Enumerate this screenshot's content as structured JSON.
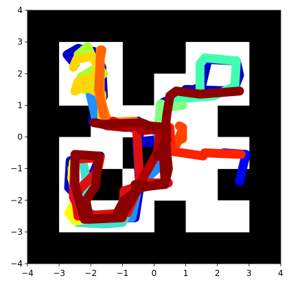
{
  "chart_data": {
    "type": "line",
    "title": "",
    "xlabel": "",
    "ylabel": "",
    "xlim": [
      -4,
      4
    ],
    "ylim": [
      -4,
      4
    ],
    "grid": false,
    "legend": "none",
    "x_ticks": [
      -4,
      -3,
      -2,
      -1,
      0,
      1,
      2,
      3,
      4
    ],
    "y_ticks": [
      -4,
      -3,
      -2,
      -1,
      0,
      1,
      2,
      3,
      4
    ],
    "x_tick_labels": [
      "−4",
      "−3",
      "−2",
      "−1",
      "0",
      "1",
      "2",
      "3",
      "4"
    ],
    "y_tick_labels": [
      "−4",
      "−3",
      "−2",
      "−1",
      "0",
      "1",
      "2",
      "3",
      "4"
    ],
    "maze": {
      "wall_color": "#000000",
      "floor_color": "#ffffff",
      "floor_cells": [
        [
          -3,
          2
        ],
        [
          -2,
          2
        ],
        [
          1,
          2
        ],
        [
          2,
          2
        ],
        [
          -3,
          1
        ],
        [
          -2,
          1
        ],
        [
          0,
          1
        ],
        [
          1,
          1
        ],
        [
          2,
          1
        ],
        [
          -2,
          0
        ],
        [
          -1,
          0
        ],
        [
          0,
          0
        ],
        [
          1,
          0
        ],
        [
          -3,
          -1
        ],
        [
          -2,
          -1
        ],
        [
          0,
          -1
        ],
        [
          1,
          -1
        ],
        [
          2,
          -1
        ],
        [
          -3,
          -2
        ],
        [
          -1,
          -2
        ],
        [
          0,
          -2
        ],
        [
          1,
          -2
        ],
        [
          -3,
          -3
        ],
        [
          -2,
          -3
        ],
        [
          -1,
          -3
        ],
        [
          1,
          -3
        ],
        [
          2,
          -3
        ]
      ]
    },
    "series": [
      {
        "color": "#0000cd",
        "x": [
          -2.5,
          -2.75,
          -2.4,
          -1.9,
          -1.65,
          -1.6,
          -1.95,
          -1.6,
          -0.5,
          -0.4,
          -0.55,
          0.0,
          0.25,
          0.3,
          0.7,
          1.0,
          2.5,
          2.7,
          2.6,
          1.7,
          1.5,
          0.3,
          0.35,
          0.2,
          -0.55,
          -0.45,
          -0.6,
          -2.4,
          -2.45,
          -1.9,
          -1.7,
          -2.65,
          -2.7,
          -2.2
        ],
        "y": [
          2.3,
          2.6,
          2.8,
          2.7,
          2.2,
          1.3,
          0.5,
          0.45,
          0.5,
          0.25,
          -0.15,
          -0.1,
          0.0,
          0.95,
          1.2,
          1.5,
          1.45,
          1.95,
          2.4,
          2.45,
          1.6,
          1.1,
          0.35,
          -0.15,
          -0.2,
          -1.55,
          -2.55,
          -2.6,
          -1.8,
          -1.1,
          -0.6,
          -0.75,
          -1.6,
          -2.1
        ]
      },
      {
        "color": "#0000ff",
        "x": [
          2.2,
          2.9,
          2.7
        ],
        "y": [
          -0.5,
          -0.55,
          -1.4
        ]
      },
      {
        "color": "#1e90ff",
        "x": [
          -2.3,
          -2.05,
          -1.85,
          -1.5,
          -0.1,
          0.15,
          0.1,
          -0.5,
          -0.7,
          -1.7,
          -2.5,
          -2.6
        ],
        "y": [
          1.9,
          1.5,
          0.6,
          0.35,
          0.35,
          0.05,
          -1.0,
          -1.55,
          -2.55,
          -2.6,
          -2.1,
          -1.0
        ]
      },
      {
        "color": "#40e0d0",
        "x": [
          -2.3,
          -2.2,
          -2.1,
          -2.2,
          -2.4,
          -1.6,
          -1.0,
          -0.7
        ],
        "y": [
          -0.6,
          -1.0,
          -1.7,
          -2.5,
          -2.7,
          -2.75,
          -2.7,
          -2.0
        ]
      },
      {
        "color": "#40ffb0",
        "x": [
          1.45,
          1.45,
          1.6,
          2.6,
          2.55,
          1.9,
          0.7,
          0.3
        ],
        "y": [
          1.45,
          2.3,
          2.5,
          2.4,
          1.6,
          1.3,
          1.2,
          0.9
        ]
      },
      {
        "color": "#80ff80",
        "x": [
          0.15,
          0.2,
          0.55,
          0.9
        ],
        "y": [
          0.4,
          1.05,
          0.95,
          1.0
        ]
      },
      {
        "color": "#adff2f",
        "x": [
          -2.4,
          -2.1,
          -1.95,
          -1.6,
          -1.9,
          -2.2,
          -2.3,
          -1.8
        ],
        "y": [
          2.6,
          2.85,
          2.5,
          2.0,
          1.7,
          1.5,
          1.9,
          2.2
        ]
      },
      {
        "color": "#ffff00",
        "x": [
          -2.55,
          -2.6,
          -2.4,
          -2.7,
          -2.5,
          -2.1
        ],
        "y": [
          -0.8,
          -1.3,
          -1.9,
          -2.4,
          -2.65,
          -2.6
        ]
      },
      {
        "color": "#ffd700",
        "x": [
          -2.55,
          -2.45,
          -1.95,
          -1.75,
          -1.9,
          -2.4,
          -2.5,
          -2.2,
          -1.65,
          -1.65,
          -0.5,
          -0.3
        ],
        "y": [
          2.2,
          2.45,
          2.55,
          2.2,
          1.9,
          1.75,
          1.45,
          1.6,
          1.35,
          0.5,
          0.45,
          0.3
        ]
      },
      {
        "color": "#ff8c00",
        "x": [
          -1.7,
          -1.7,
          -1.45,
          -0.6,
          -0.5,
          0.15
        ],
        "y": [
          2.75,
          1.2,
          0.45,
          0.5,
          0.3,
          0.3
        ]
      },
      {
        "color": "#ff6600",
        "x": [
          -1.65,
          -1.7,
          -1.75,
          -1.6
        ],
        "y": [
          2.75,
          2.5,
          1.5,
          0.7
        ]
      },
      {
        "color": "#ff4500",
        "x": [
          0.8,
          0.9,
          0.9,
          0.7,
          0.7,
          0.9
        ],
        "y": [
          0.35,
          0.3,
          -0.05,
          -0.15,
          -0.25,
          0.25
        ]
      },
      {
        "color": "#ff2200",
        "x": [
          0.5,
          0.55,
          1.55,
          1.6,
          2.75
        ],
        "y": [
          0.3,
          -0.45,
          -0.6,
          -0.5,
          -0.55
        ]
      },
      {
        "color": "#e01010",
        "x": [
          -1.3,
          -0.95,
          -0.55,
          -0.45,
          0.15,
          0.25,
          -0.5,
          -0.85,
          -2.4,
          -2.5,
          -1.8,
          -1.7,
          -2.5,
          -2.55,
          -2.2,
          -1.0,
          -0.95,
          -0.5,
          -0.4,
          0.45
        ],
        "y": [
          0.5,
          0.35,
          0.25,
          -1.45,
          -1.45,
          -1.5,
          -1.6,
          -2.4,
          -2.5,
          -1.8,
          -1.1,
          -0.65,
          -0.7,
          -1.9,
          -2.6,
          -2.55,
          -1.7,
          -1.55,
          -1.5,
          -1.45
        ]
      },
      {
        "color": "#b20000",
        "x": [
          -1.85,
          -1.4,
          -0.9,
          -0.5,
          -0.4,
          0.2,
          0.1,
          -0.5
        ],
        "y": [
          0.45,
          0.35,
          0.3,
          0.35,
          0.2,
          0.25,
          -0.5,
          -1.55
        ]
      },
      {
        "color": "#8b0000",
        "x": [
          -1.9,
          -1.6,
          -0.4,
          -0.15,
          0.4,
          0.4,
          0.1,
          0.3,
          0.35,
          -0.15,
          -0.6,
          -0.55,
          -1.05,
          -2.05,
          -2.15,
          -1.85,
          -1.75,
          -2.5,
          -2.5,
          -2.2,
          -1.25,
          -0.95,
          -0.4,
          0.1,
          0.35,
          0.45,
          0.4,
          0.35,
          0.4,
          0.5,
          0.7,
          1.45,
          2.7
        ],
        "y": [
          0.45,
          0.4,
          0.45,
          0.35,
          0.3,
          -0.1,
          -0.6,
          -0.6,
          -1.5,
          -1.55,
          -1.5,
          -1.7,
          -2.55,
          -2.6,
          -2.0,
          -1.55,
          -0.6,
          -0.55,
          -1.5,
          -2.6,
          -2.55,
          -2.0,
          -1.6,
          -1.5,
          -1.45,
          -1.0,
          -0.5,
          0.2,
          0.7,
          1.3,
          1.45,
          1.35,
          1.45
        ]
      }
    ]
  }
}
